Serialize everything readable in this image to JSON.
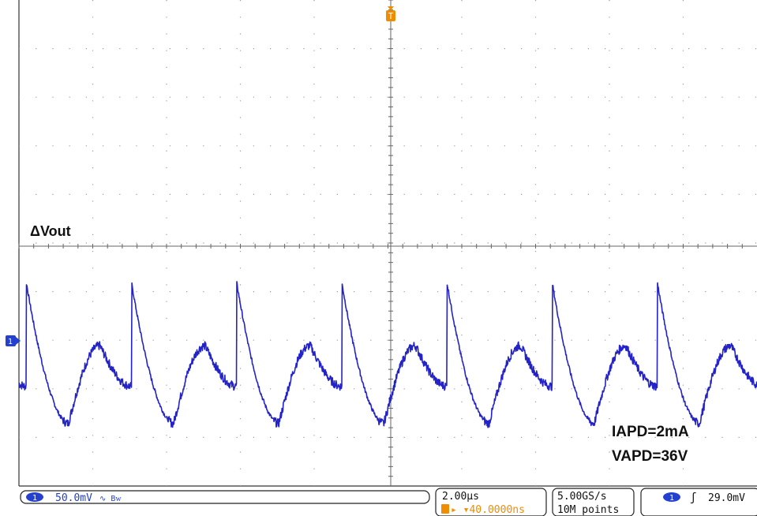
{
  "annotation": {
    "signal_label": "Vout",
    "delta_symbol": "Δ",
    "current": "IAPD=2mA",
    "voltage": "VAPD=36V"
  },
  "markers": {
    "trigger_position": "T",
    "channel": "1"
  },
  "status_bar": {
    "channel_number": "1",
    "channel_scale": "50.0mV",
    "channel_bw_symbol": "∿ Bᴡ",
    "time_per_div": "2.00µs",
    "trigger_offset": "▸ ▾40.0000ns",
    "sample_rate": "5.00GS/s",
    "record_length": "10M points",
    "trigger_channel": "1",
    "trigger_slope_symbol": "ʃ",
    "trigger_level": "29.0mV"
  },
  "colors": {
    "trace": "#2323c8",
    "trigger_marker": "#f08c00",
    "channel_badge": "#2340d0",
    "grid": "#9a9a9a"
  },
  "chart_data": {
    "type": "line",
    "description_free": true,
    "x_unit": "µs",
    "y_unit": "mV",
    "horizontal_divisions": 10,
    "vertical_divisions": 10,
    "time_per_div_us": 2.0,
    "volts_per_div_mV": 50.0,
    "grid": true,
    "series": [
      {
        "name": "",
        "period_us": 2.85,
        "peak_mV": 60,
        "trough_mV": -85,
        "shoulder_mV": -5,
        "spike_times_us": [
          0.2,
          3.05,
          5.9,
          8.75,
          11.6,
          14.45,
          17.3,
          20.1
        ]
      }
    ]
  }
}
